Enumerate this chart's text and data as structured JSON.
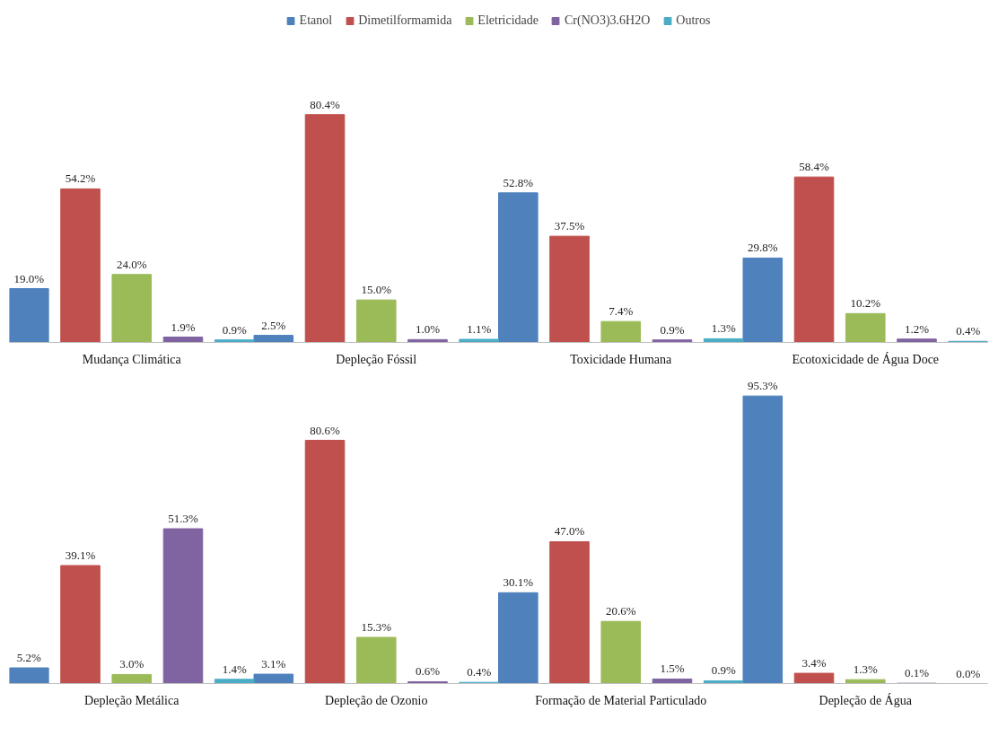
{
  "chart_data": [
    {
      "type": "bar",
      "categories": [
        "Mudança Climática",
        "Depleção Fóssil",
        "Toxicidade Humana",
        "Ecotoxicidade de Água Doce"
      ],
      "legend": "top",
      "grid": false,
      "series": [
        {
          "name": "Etanol",
          "color": "#4f81bd",
          "values": [
            19.0,
            2.5,
            52.8,
            29.8
          ],
          "value_labels": [
            "19.0%",
            "2.5%",
            "52.8%",
            "29.8%"
          ]
        },
        {
          "name": "Dimetilformamida",
          "color": "#c0504d",
          "values": [
            54.2,
            80.4,
            37.5,
            58.4
          ],
          "value_labels": [
            "54.2%",
            "80.4%",
            "37.5%",
            "58.4%"
          ]
        },
        {
          "name": "Eletricidade",
          "color": "#9bbb59",
          "values": [
            24.0,
            15.0,
            7.4,
            10.2
          ],
          "value_labels": [
            "24.0%",
            "15.0%",
            "7.4%",
            "10.2%"
          ]
        },
        {
          "name": "Cr(NO3)3.6H2O",
          "color": "#8064a2",
          "values": [
            1.9,
            1.0,
            0.9,
            1.2
          ],
          "value_labels": [
            "1.9%",
            "1.0%",
            "0.9%",
            "1.2%"
          ]
        },
        {
          "name": "Outros",
          "color": "#4bacc6",
          "values": [
            0.9,
            1.1,
            1.3,
            0.4
          ],
          "value_labels": [
            "0.9%",
            "1.1%",
            "1.3%",
            "0.4%"
          ]
        }
      ]
    },
    {
      "type": "bar",
      "categories": [
        "Depleção Metálica",
        "Depleção de Ozonio",
        "Formação de Material Particulado",
        "Depleção de Água"
      ],
      "legend": false,
      "grid": false,
      "series": [
        {
          "color": "#4f81bd",
          "values": [
            5.2,
            3.1,
            30.1,
            95.3
          ],
          "value_labels": [
            "5.2%",
            "3.1%",
            "30.1%",
            "95.3%"
          ]
        },
        {
          "color": "#c0504d",
          "values": [
            39.1,
            80.6,
            47.0,
            3.4
          ],
          "value_labels": [
            "39.1%",
            "80.6%",
            "47.0%",
            "3.4%"
          ]
        },
        {
          "color": "#9bbb59",
          "values": [
            3.0,
            15.3,
            20.6,
            1.3
          ],
          "value_labels": [
            "3.0%",
            "15.3%",
            "20.6%",
            "1.3%"
          ]
        },
        {
          "color": "#8064a2",
          "values": [
            51.3,
            0.6,
            1.5,
            0.1
          ],
          "value_labels": [
            "51.3%",
            "0.6%",
            "1.5%",
            "0.1%"
          ]
        },
        {
          "color": "#4bacc6",
          "values": [
            1.4,
            0.4,
            0.9,
            0.0
          ],
          "value_labels": [
            "1.4%",
            "0.4%",
            "0.9%",
            "0.0%"
          ]
        }
      ]
    }
  ]
}
